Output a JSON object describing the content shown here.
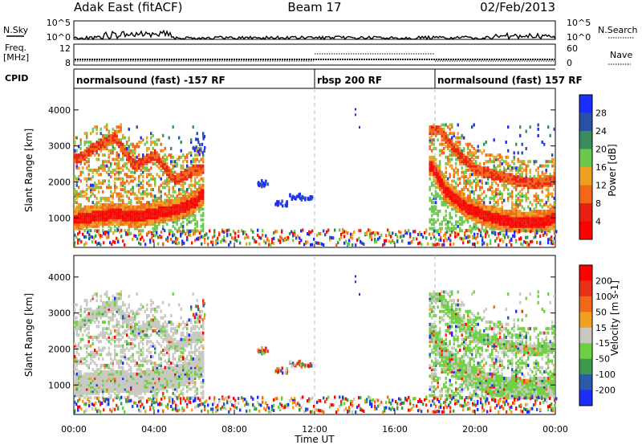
{
  "header": {
    "left": "Adak East (fitACF)",
    "center": "Beam 17",
    "right": "02/Feb/2013"
  },
  "panels": {
    "nsky": {
      "label": "N.Sky",
      "tick_top": "10^5",
      "tick_bottom": "10^0",
      "right_label": "N.Search",
      "right_top": "10^5",
      "right_bottom": "10^0"
    },
    "freq": {
      "label_line1": "Freq.",
      "label_line2": "[MHz]",
      "left_top": "12",
      "left_bottom": "8",
      "right_label": "Nave",
      "right_top": "60",
      "right_bottom": "0"
    },
    "cpid": {
      "label": "CPID",
      "segments": [
        {
          "start": 0,
          "end": 12,
          "label": "normalsound (fast) -157 RF"
        },
        {
          "start": 12,
          "end": 18,
          "label": "rbsp 200 RF"
        },
        {
          "start": 18,
          "end": 24,
          "label": "normalsound (fast) 157 RF"
        }
      ]
    }
  },
  "chart_data": [
    {
      "type": "heatmap",
      "name": "power",
      "xlabel": "",
      "ylabel": "Slant Range [km]",
      "xlim": [
        0,
        24
      ],
      "ylim": [
        180,
        4600
      ],
      "yticks": [
        1000,
        2000,
        3000,
        4000
      ],
      "colorbar": {
        "label": "Power [dB]",
        "ticks": [
          "4",
          "8",
          "12",
          "16",
          "20",
          "24",
          "28"
        ],
        "colors": [
          "#1a2cff",
          "#2850a8",
          "#3a8c5a",
          "#6cc84c",
          "#f0a020",
          "#f06818",
          "#e82010",
          "#ff0000"
        ]
      },
      "features": [
        {
          "desc": "main echo band",
          "x": [
            0.1,
            1,
            2,
            3,
            4,
            5,
            6,
            6.3
          ],
          "y": [
            930,
            1000,
            1080,
            990,
            1100,
            1180,
            1400,
            1600
          ]
        },
        {
          "desc": "upper echo band",
          "x": [
            0.2,
            1,
            2,
            3,
            4,
            5,
            6
          ],
          "y": [
            2600,
            2900,
            3200,
            2400,
            2700,
            2000,
            2300
          ]
        },
        {
          "desc": "main echo band",
          "x": [
            17.8,
            18.5,
            19.5,
            20.5,
            21.5,
            22.5,
            23.5,
            23.9
          ],
          "y": [
            2400,
            1700,
            1250,
            1020,
            880,
            820,
            870,
            950
          ]
        },
        {
          "desc": "upper echo band",
          "x": [
            18.2,
            19,
            20,
            21,
            22,
            23,
            23.9
          ],
          "y": [
            3400,
            2800,
            2300,
            2150,
            2000,
            1900,
            2000
          ]
        }
      ]
    },
    {
      "type": "heatmap",
      "name": "velocity",
      "xlabel": "Time UT",
      "ylabel": "Slant Range [km]",
      "xlim": [
        0,
        24
      ],
      "ylim": [
        180,
        4600
      ],
      "yticks": [
        1000,
        2000,
        3000,
        4000
      ],
      "xticks": [
        "00:00",
        "04:00",
        "08:00",
        "12:00",
        "16:00",
        "20:00",
        "00:00"
      ],
      "colorbar": {
        "label": "Velocity [m s-1]",
        "ticks": [
          "200",
          "100",
          "50",
          "15",
          "-15",
          "-50",
          "-100",
          "-200"
        ],
        "colors": [
          "#1a2cff",
          "#2a5aa8",
          "#3c9a4c",
          "#6cd040",
          "#c8c8c0",
          "#f0a020",
          "#f06818",
          "#e83018",
          "#ff0000"
        ]
      }
    }
  ]
}
